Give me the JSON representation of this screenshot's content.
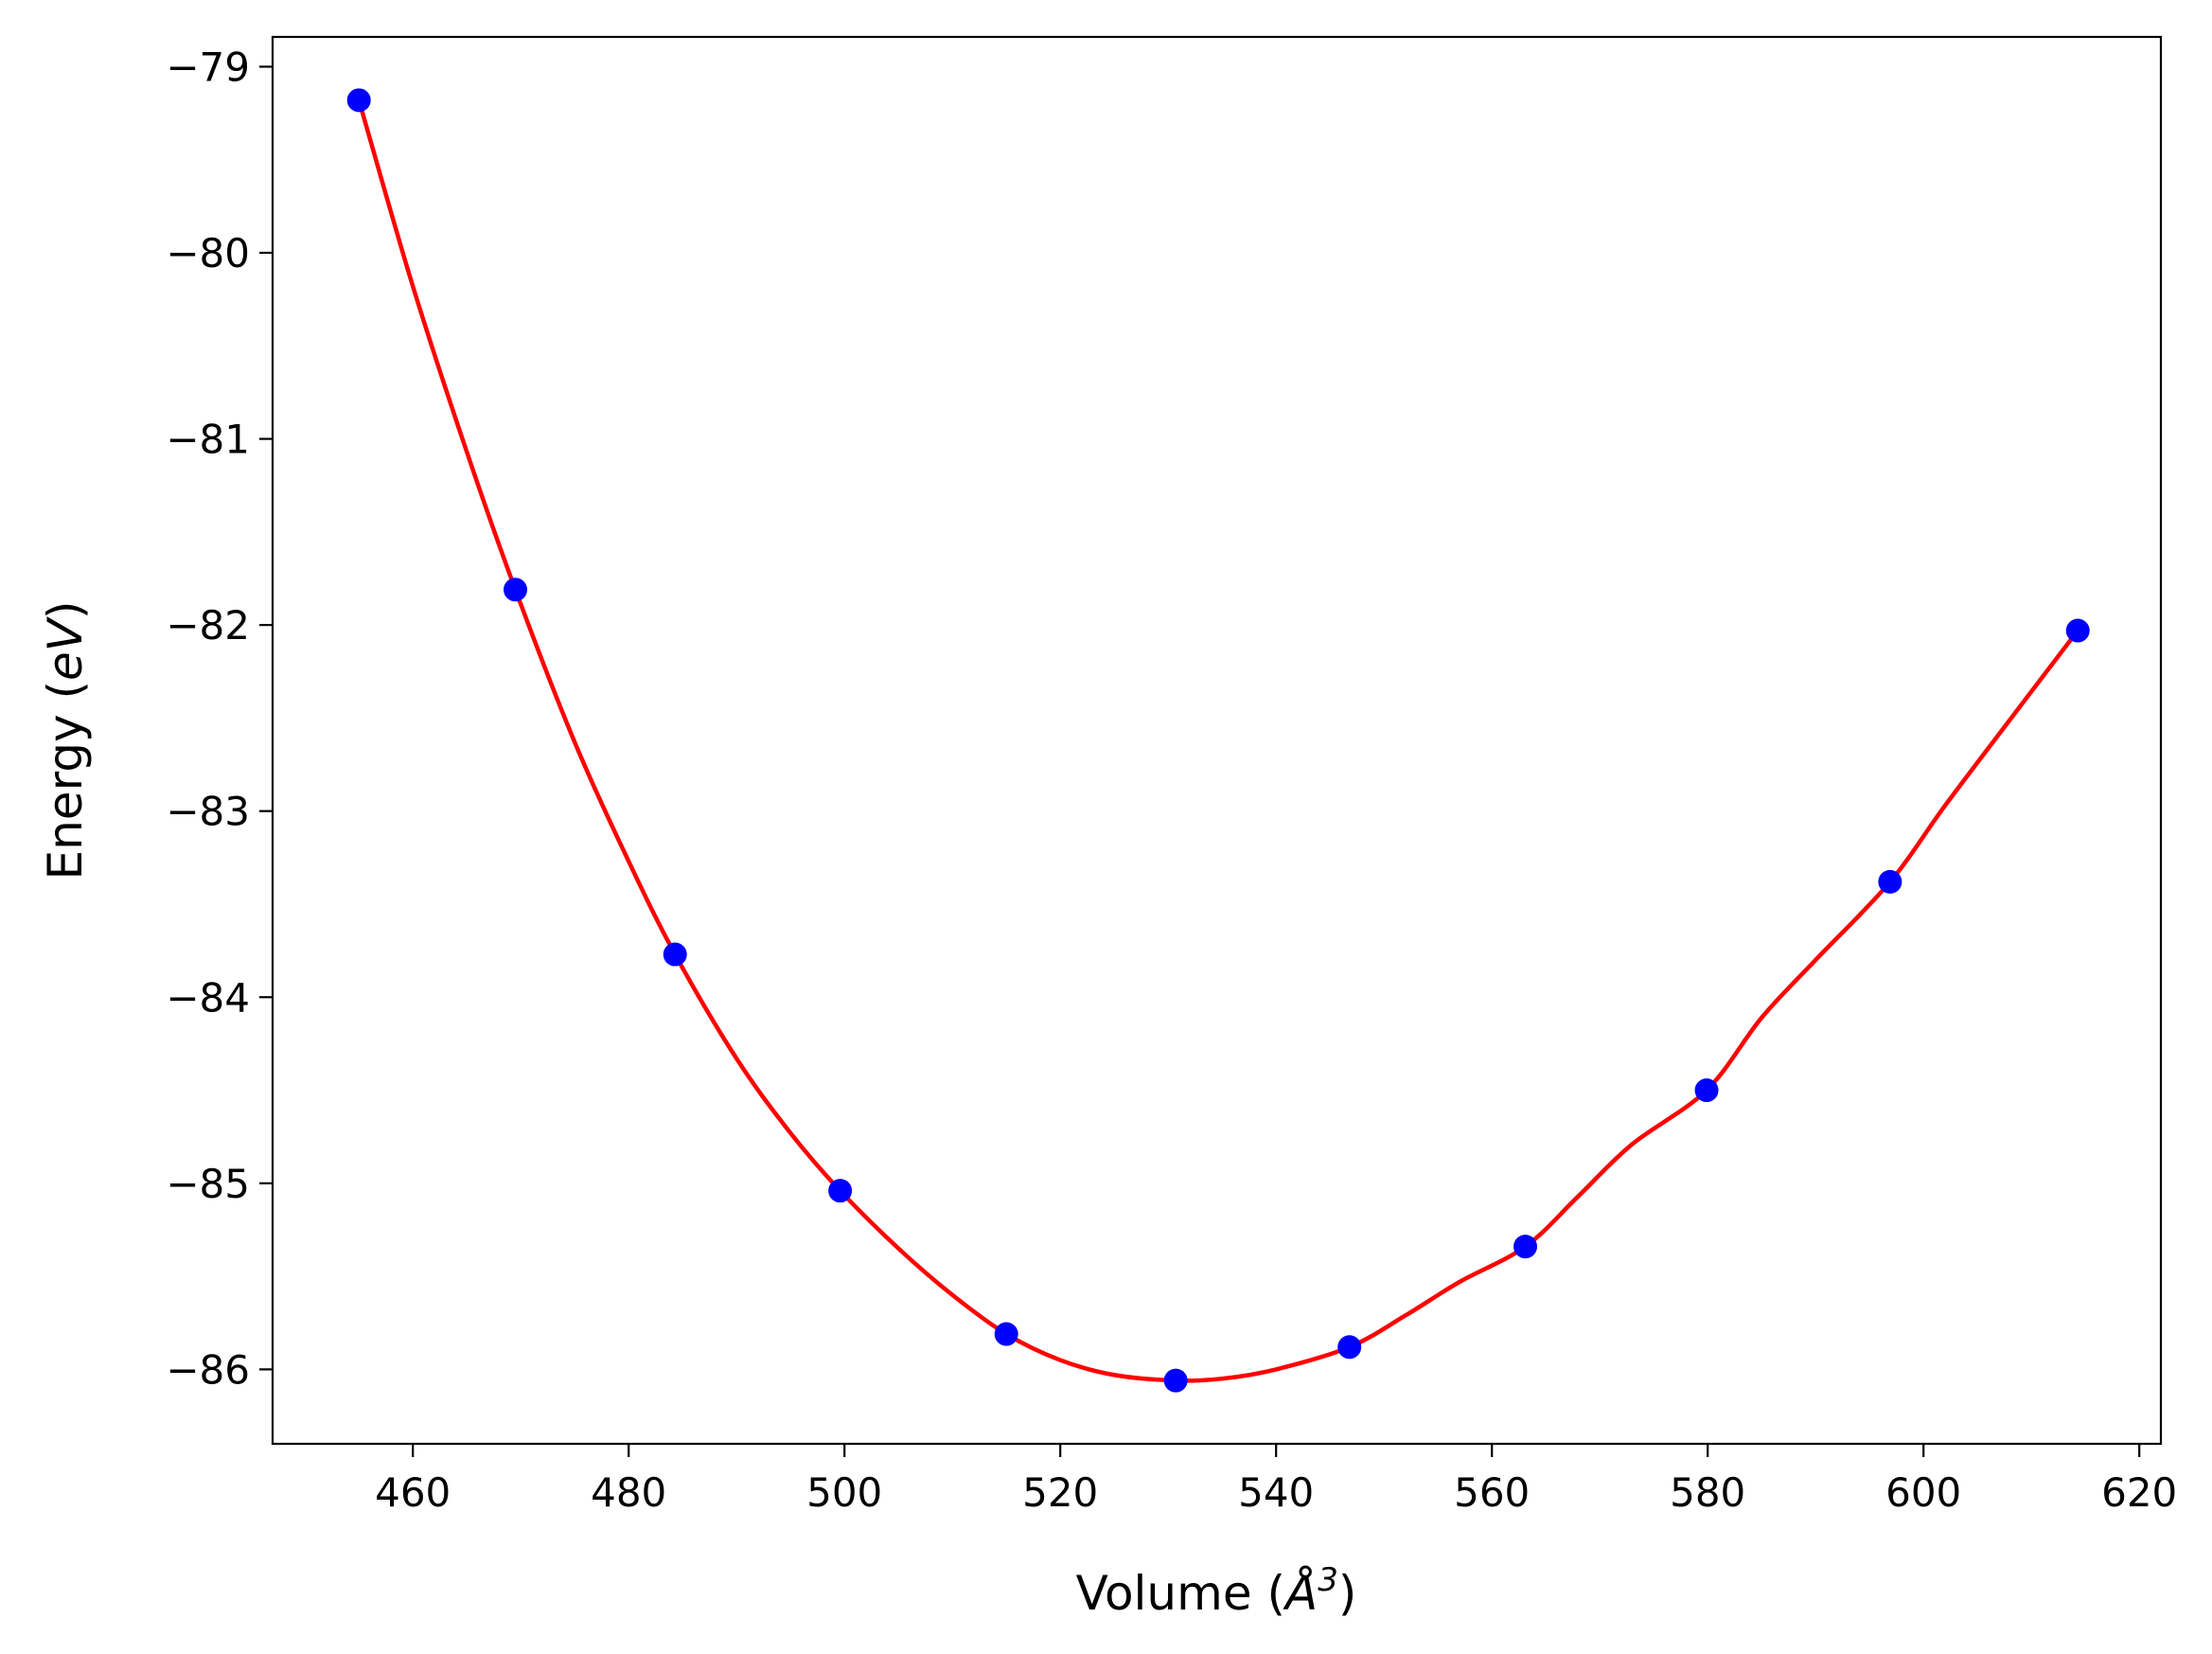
{
  "chart_data": {
    "type": "line",
    "title": "",
    "xlabel": {
      "prefix": "Volume (",
      "symbol": "Å",
      "superscript": "3",
      "suffix": ")"
    },
    "ylabel": {
      "prefix": "Energy (",
      "symbol": "eV",
      "suffix": ")"
    },
    "xlim": [
      447,
      622
    ],
    "ylim": [
      -86.4,
      -78.84
    ],
    "xticks": [
      460,
      480,
      500,
      520,
      540,
      560,
      580,
      600,
      620
    ],
    "xtick_labels": [
      "460",
      "480",
      "500",
      "520",
      "540",
      "560",
      "580",
      "600",
      "620"
    ],
    "yticks": [
      -79,
      -80,
      -81,
      -82,
      -83,
      -84,
      -85,
      -86
    ],
    "ytick_labels": [
      "−79",
      "−80",
      "−81",
      "−82",
      "−83",
      "−84",
      "−85",
      "−86"
    ],
    "grid": false,
    "series": [
      {
        "style": "markers",
        "color": "#0000ff",
        "x": [
          455.0,
          469.5,
          484.3,
          499.6,
          515.0,
          530.7,
          546.8,
          563.1,
          579.9,
          596.9,
          614.3
        ],
        "y": [
          -79.18,
          -81.81,
          -83.77,
          -85.04,
          -85.81,
          -86.06,
          -85.88,
          -85.34,
          -84.5,
          -83.38,
          -82.03
        ]
      },
      {
        "style": "line",
        "color": "#ff0000",
        "x": [
          455.0,
          460.0,
          465.0,
          469.5,
          475.0,
          480.0,
          484.3,
          490.0,
          495.0,
          499.6,
          505.0,
          510.0,
          515.0,
          520.0,
          525.0,
          530.7,
          535.0,
          540.0,
          546.8,
          552.0,
          557.0,
          563.1,
          568.0,
          573.0,
          579.9,
          585.0,
          590.0,
          596.9,
          602.0,
          608.0,
          614.3
        ],
        "y": [
          -79.18,
          -80.18,
          -81.07,
          -81.81,
          -82.63,
          -83.27,
          -83.77,
          -84.33,
          -84.73,
          -85.04,
          -85.35,
          -85.6,
          -85.81,
          -85.95,
          -86.03,
          -86.06,
          -86.05,
          -86.0,
          -85.88,
          -85.71,
          -85.53,
          -85.34,
          -85.07,
          -84.79,
          -84.5,
          -84.11,
          -83.8,
          -83.38,
          -82.97,
          -82.51,
          -82.03
        ]
      }
    ]
  }
}
